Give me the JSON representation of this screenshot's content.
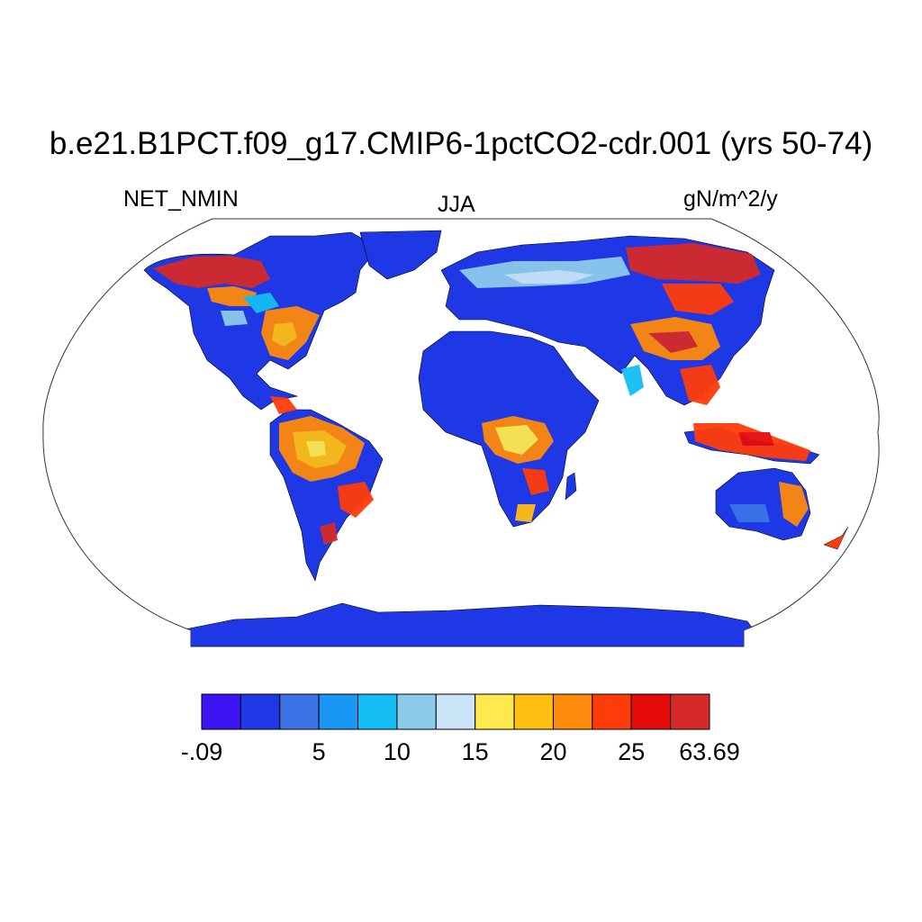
{
  "figure": {
    "title": "b.e21.B1PCT.f09_g17.CMIP6-1pctCO2-cdr.001 (yrs 50-74)",
    "left_label": "NET_NMIN",
    "center_label": "JJA",
    "right_label": "gN/m^2/y"
  },
  "colorbar": {
    "colors": [
      "#3d14f2",
      "#1e38e6",
      "#3c74e8",
      "#1a96f5",
      "#14bef5",
      "#8ccaec",
      "#c8e4f6",
      "#ffe94e",
      "#ffbe13",
      "#ff8a0c",
      "#ff3c0a",
      "#e60b0b",
      "#d62a2a"
    ],
    "labels": [
      {
        "text": "-.09",
        "boundary": 0
      },
      {
        "text": "5",
        "boundary": 3
      },
      {
        "text": "10",
        "boundary": 5
      },
      {
        "text": "15",
        "boundary": 7
      },
      {
        "text": "20",
        "boundary": 9
      },
      {
        "text": "25",
        "boundary": 11
      },
      {
        "text": "63.69",
        "boundary": 13
      }
    ]
  },
  "map": {
    "projection": "Robinson",
    "ocean_color": "#ffffff",
    "land_base_color": "#1e38e6",
    "high_regions": [
      "Alaska / NW Canada",
      "Eastern North America",
      "Amazon",
      "Central Africa",
      "Siberia",
      "China",
      "Southeast Asia",
      "Northeast Australia"
    ]
  }
}
